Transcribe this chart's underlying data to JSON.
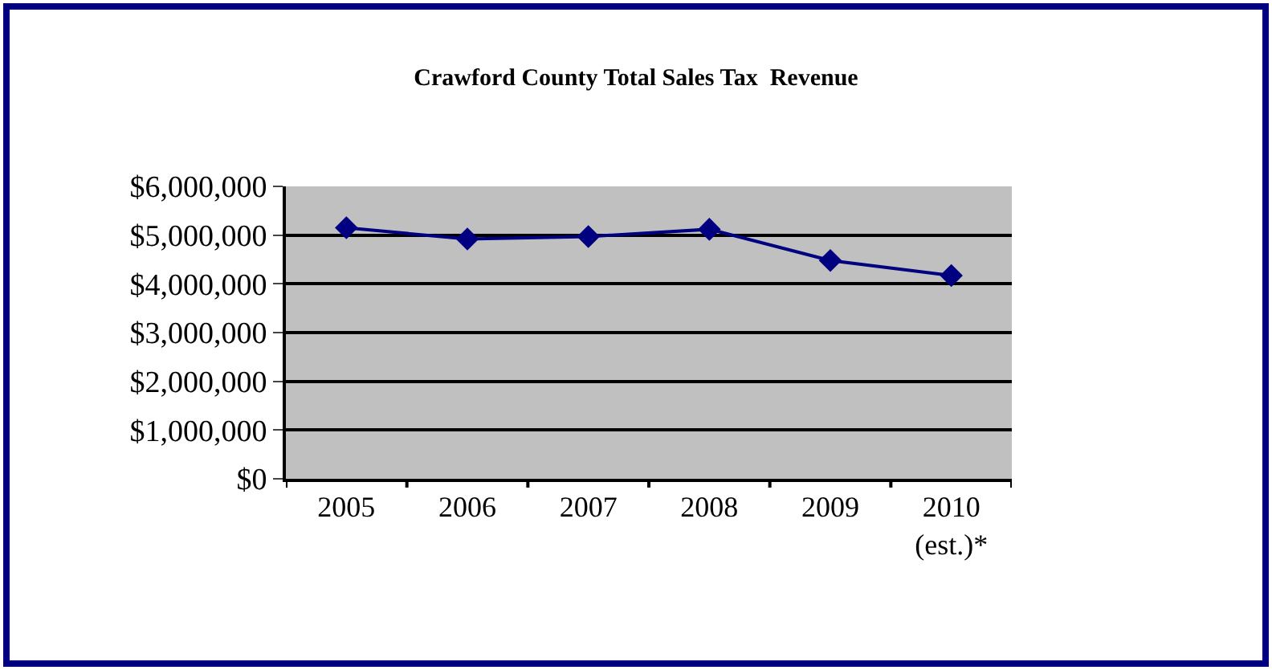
{
  "chart_data": {
    "type": "line",
    "title": "Crawford County Total Sales Tax  Revenue",
    "categories": [
      "2005",
      "2006",
      "2007",
      "2008",
      "2009",
      "2010\n(est.)*"
    ],
    "series": [
      {
        "color": "#000080",
        "values": [
          5150000,
          4920000,
          4970000,
          5120000,
          4480000,
          4170000
        ]
      }
    ],
    "ylim": [
      0,
      6000000
    ],
    "yticks": [
      {
        "value": 0,
        "label": "$0"
      },
      {
        "value": 1000000,
        "label": "$1,000,000"
      },
      {
        "value": 2000000,
        "label": "$2,000,000"
      },
      {
        "value": 3000000,
        "label": "$3,000,000"
      },
      {
        "value": 4000000,
        "label": "$4,000,000"
      },
      {
        "value": 5000000,
        "label": "$5,000,000"
      },
      {
        "value": 6000000,
        "label": "$6,000,000"
      }
    ],
    "grid": "y",
    "marker": "diamond",
    "line_style": "solid"
  }
}
